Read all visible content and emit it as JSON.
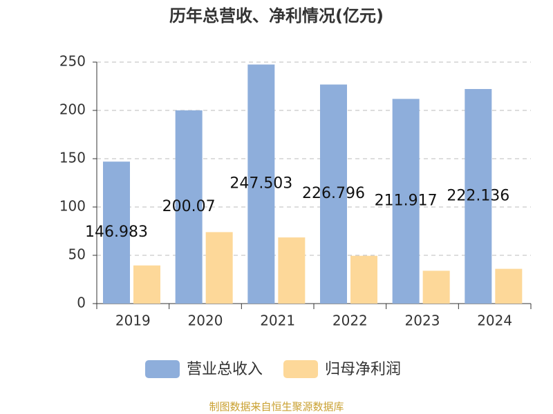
{
  "chart_data": {
    "type": "bar",
    "title": "历年总营收、净利情况(亿元)",
    "categories": [
      "2019",
      "2020",
      "2021",
      "2022",
      "2023",
      "2024"
    ],
    "series": [
      {
        "name": "营业总收入",
        "color": "#8eaedb",
        "values": [
          146.983,
          200.07,
          247.503,
          226.796,
          211.917,
          222.136
        ]
      },
      {
        "name": "归母净利润",
        "color": "#fdd899",
        "values": [
          39.5,
          74,
          68.5,
          49.5,
          34,
          36
        ]
      }
    ],
    "ylim": [
      0,
      250
    ],
    "yticks": [
      0,
      50,
      100,
      150,
      200,
      250
    ],
    "grid": true,
    "legend": "bottom",
    "source": "制图数据来自恒生聚源数据库"
  }
}
